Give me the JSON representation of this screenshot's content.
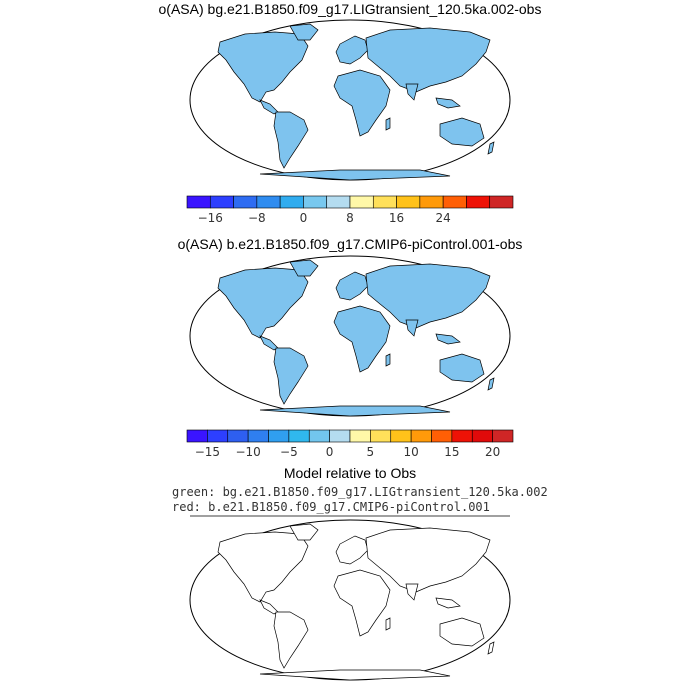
{
  "panel1": {
    "title": "o(ASA) bg.e21.B1850.f09_g17.LIGtransient_120.5ka.002-obs",
    "colorbar": {
      "colors": [
        "#3a14ff",
        "#2d3fff",
        "#2e6cf2",
        "#2f8cf0",
        "#30acef",
        "#78c8ef",
        "#b4dcf0",
        "#fff8a8",
        "#ffe05a",
        "#ffc21a",
        "#ff9a0a",
        "#ff5f05",
        "#ee1206",
        "#cf2626"
      ],
      "ticks": [
        "−16",
        "−8",
        "0",
        "8",
        "16",
        "24"
      ],
      "tick_boundary_index": [
        1,
        3,
        5,
        7,
        9,
        11
      ]
    }
  },
  "panel2": {
    "title": "o(ASA) b.e21.B1850.f09_g17.CMIP6-piControl.001-obs",
    "colorbar": {
      "colors": [
        "#3a14ff",
        "#2d3fff",
        "#2e5ff0",
        "#2f7ff0",
        "#309ff0",
        "#30b8ee",
        "#72c6ee",
        "#b4dcf0",
        "#fff8a8",
        "#ffe05a",
        "#ffc21a",
        "#ff9a0a",
        "#ff5f05",
        "#ee1206",
        "#e00a0a",
        "#cf2626"
      ],
      "ticks": [
        "−15",
        "−10",
        "−5",
        "0",
        "5",
        "10",
        "15",
        "20"
      ],
      "tick_boundary_index": [
        1,
        3,
        5,
        7,
        9,
        11,
        13,
        15
      ]
    }
  },
  "panel3": {
    "title": "Model relative to Obs",
    "legend_green": "green: bg.e21.B1850.f09_g17.LIGtransient_120.5ka.002",
    "legend_red": "red: b.e21.B1850.f09_g17.CMIP6-piControl.001",
    "colors": {
      "green": "#22e622",
      "red": "#e60000"
    }
  },
  "colors": {
    "ocean": "#ffffff",
    "land_base": "#7ec3ee",
    "land_light": "#b4dcf0",
    "coast": "#000000"
  }
}
